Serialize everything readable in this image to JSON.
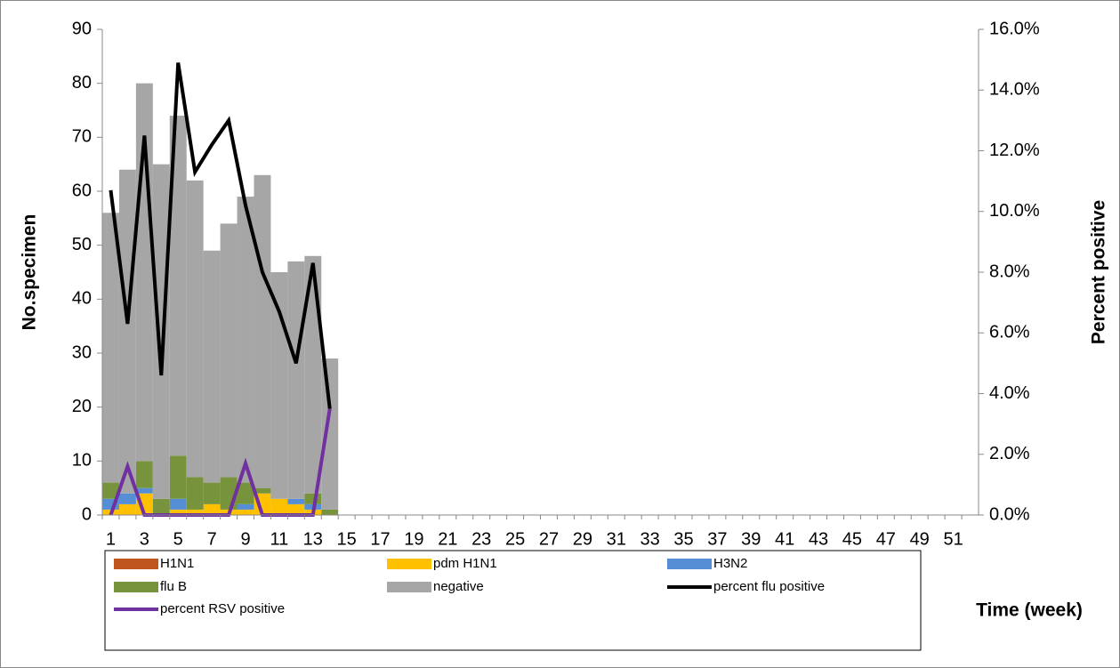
{
  "chart_data": {
    "type": "bar",
    "y_label": "No.specimen",
    "y2_label": "Percent positive",
    "x_label": "Time (week)",
    "categories": [
      1,
      null,
      3,
      null,
      5,
      null,
      7,
      null,
      9,
      null,
      11,
      null,
      13,
      null,
      15,
      null,
      17,
      null,
      19,
      null,
      21,
      null,
      23,
      null,
      25,
      null,
      27,
      null,
      29,
      null,
      31,
      null,
      33,
      null,
      35,
      null,
      37,
      null,
      39,
      null,
      41,
      null,
      43,
      null,
      45,
      null,
      47,
      null,
      49,
      null,
      51,
      null
    ],
    "ylim": [
      0,
      90
    ],
    "yticks": [
      0,
      10,
      20,
      30,
      40,
      50,
      60,
      70,
      80,
      90
    ],
    "y2lim": [
      0,
      16
    ],
    "y2ticks": [
      {
        "value": 0,
        "label": "0.0%"
      },
      {
        "value": 2,
        "label": "2.0%"
      },
      {
        "value": 4,
        "label": "4.0%"
      },
      {
        "value": 6,
        "label": "6.0%"
      },
      {
        "value": 8,
        "label": "8.0%"
      },
      {
        "value": 10,
        "label": "10.0%"
      },
      {
        "value": 12,
        "label": "12.0%"
      },
      {
        "value": 14,
        "label": "14.0%"
      },
      {
        "value": 16,
        "label": "16.0%"
      }
    ],
    "stacked": true,
    "series": [
      {
        "name": "H1N1",
        "type": "bar",
        "color": "#c0561f",
        "values": [
          0,
          0,
          0,
          0,
          0,
          0,
          0,
          0,
          0,
          0,
          0,
          0,
          0,
          0,
          null,
          null,
          null,
          null,
          null,
          null,
          null,
          null,
          null,
          null,
          null,
          null,
          null,
          null,
          null,
          null,
          null,
          null,
          null,
          null,
          null,
          null,
          null,
          null,
          null,
          null,
          null,
          null,
          null,
          null,
          null,
          null,
          null,
          null,
          null,
          null,
          null,
          null
        ]
      },
      {
        "name": "pdm H1N1",
        "type": "bar",
        "color": "#ffc000",
        "values": [
          1,
          2,
          4,
          0,
          1,
          1,
          2,
          1,
          1,
          4,
          3,
          2,
          1,
          0,
          null,
          null,
          null,
          null,
          null,
          null,
          null,
          null,
          null,
          null,
          null,
          null,
          null,
          null,
          null,
          null,
          null,
          null,
          null,
          null,
          null,
          null,
          null,
          null,
          null,
          null,
          null,
          null,
          null,
          null,
          null,
          null,
          null,
          null,
          null,
          null,
          null,
          null
        ]
      },
      {
        "name": "H3N2",
        "type": "bar",
        "color": "#558ed5",
        "values": [
          2,
          2,
          1,
          0,
          2,
          0,
          0,
          0,
          1,
          0,
          0,
          1,
          1,
          0,
          null,
          null,
          null,
          null,
          null,
          null,
          null,
          null,
          null,
          null,
          null,
          null,
          null,
          null,
          null,
          null,
          null,
          null,
          null,
          null,
          null,
          null,
          null,
          null,
          null,
          null,
          null,
          null,
          null,
          null,
          null,
          null,
          null,
          null,
          null,
          null,
          null,
          null
        ]
      },
      {
        "name": "flu B",
        "type": "bar",
        "color": "#77933c",
        "values": [
          3,
          0,
          5,
          3,
          8,
          6,
          4,
          6,
          4,
          1,
          0,
          0,
          2,
          1,
          null,
          null,
          null,
          null,
          null,
          null,
          null,
          null,
          null,
          null,
          null,
          null,
          null,
          null,
          null,
          null,
          null,
          null,
          null,
          null,
          null,
          null,
          null,
          null,
          null,
          null,
          null,
          null,
          null,
          null,
          null,
          null,
          null,
          null,
          null,
          null,
          null,
          null
        ]
      },
      {
        "name": "negative",
        "type": "bar",
        "color": "#a6a6a6",
        "values": [
          50,
          60,
          70,
          62,
          63,
          55,
          43,
          47,
          53,
          58,
          42,
          44,
          44,
          28,
          null,
          null,
          null,
          null,
          null,
          null,
          null,
          null,
          null,
          null,
          null,
          null,
          null,
          null,
          null,
          null,
          null,
          null,
          null,
          null,
          null,
          null,
          null,
          null,
          null,
          null,
          null,
          null,
          null,
          null,
          null,
          null,
          null,
          null,
          null,
          null,
          null,
          null
        ]
      },
      {
        "name": "percent flu positive",
        "type": "line",
        "axis": "y2",
        "color": "#000000",
        "values": [
          10.7,
          6.3,
          12.5,
          4.6,
          14.9,
          11.3,
          12.2,
          13.0,
          10.2,
          8.0,
          6.7,
          5.0,
          8.3,
          3.5,
          null,
          null,
          null,
          null,
          null,
          null,
          null,
          null,
          null,
          null,
          null,
          null,
          null,
          null,
          null,
          null,
          null,
          null,
          null,
          null,
          null,
          null,
          null,
          null,
          null,
          null,
          null,
          null,
          null,
          null,
          null,
          null,
          null,
          null,
          null,
          null,
          null,
          null
        ]
      },
      {
        "name": "percent  RSV positive",
        "type": "line",
        "axis": "y2",
        "color": "#7030a0",
        "values": [
          0,
          1.6,
          0,
          0,
          0,
          0,
          0,
          0,
          1.7,
          0,
          0,
          0,
          0,
          3.5,
          null,
          null,
          null,
          null,
          null,
          null,
          null,
          null,
          null,
          null,
          null,
          null,
          null,
          null,
          null,
          null,
          null,
          null,
          null,
          null,
          null,
          null,
          null,
          null,
          null,
          null,
          null,
          null,
          null,
          null,
          null,
          null,
          null,
          null,
          null,
          null,
          null,
          null
        ]
      }
    ]
  }
}
